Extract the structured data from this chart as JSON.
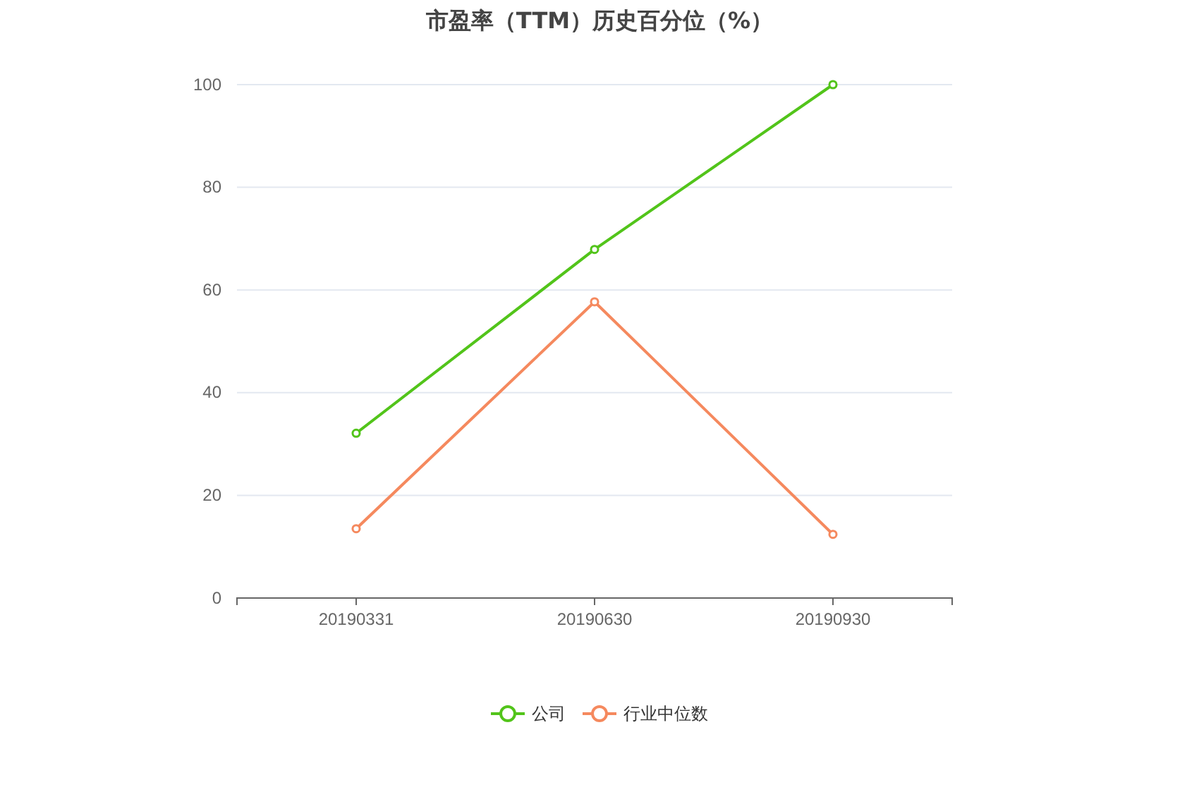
{
  "chart_data": {
    "type": "line",
    "title": "市盈率（TTM）历史百分位（%）",
    "categories": [
      "20190331",
      "20190630",
      "20190930"
    ],
    "series": [
      {
        "name": "公司",
        "color": "#52c41a",
        "values": [
          32.1,
          67.9,
          100
        ]
      },
      {
        "name": "行业中位数",
        "color": "#f5895e",
        "values": [
          13.5,
          57.7,
          12.4
        ]
      }
    ],
    "ylim": [
      0,
      100
    ],
    "yticks": [
      0,
      20,
      40,
      60,
      80,
      100
    ],
    "grid": "y",
    "legend": "bottom",
    "marker": "circle"
  }
}
